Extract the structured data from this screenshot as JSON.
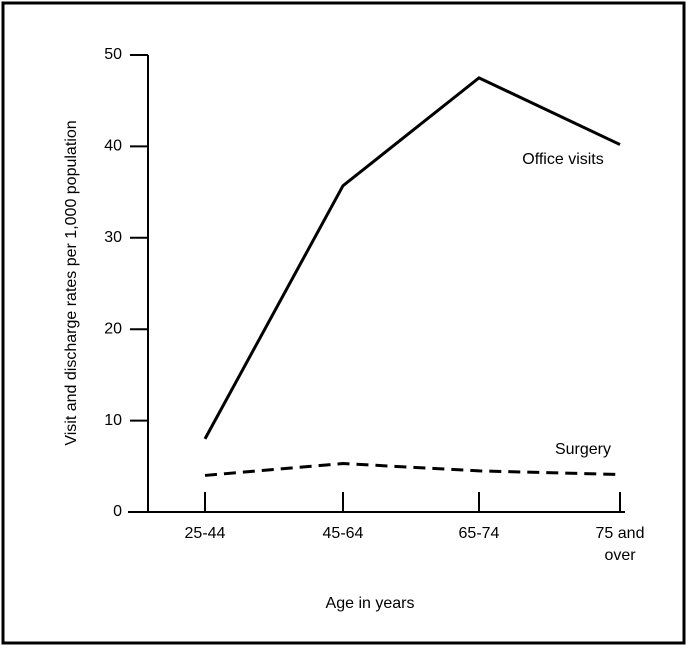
{
  "chart_data": {
    "type": "line",
    "categories": [
      "25-44",
      "45-64",
      "65-74",
      "75 and over"
    ],
    "series": [
      {
        "name": "Office visits",
        "color": "#000000",
        "dash": false,
        "values": [
          8,
          35.7,
          47.5,
          40.2
        ]
      },
      {
        "name": "Surgery",
        "color": "#000000",
        "dash": true,
        "values": [
          4,
          5.3,
          4.5,
          4.1
        ]
      }
    ],
    "ylabel": "Visit and discharge rates per 1,000 population",
    "xlabel": "Age in years",
    "ylim": [
      0,
      50
    ],
    "yticks": [
      0,
      10,
      20,
      30,
      40,
      50
    ],
    "grid": false
  }
}
